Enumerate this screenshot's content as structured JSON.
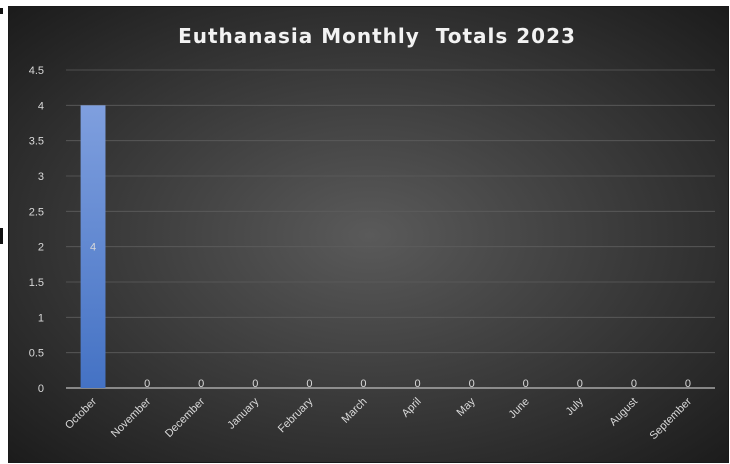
{
  "chart_data": {
    "type": "bar",
    "title": "Euthanasia Monthly  Totals 2023",
    "categories": [
      "October",
      "November",
      "December",
      "January",
      "February",
      "March",
      "April",
      "May",
      "June",
      "July",
      "August",
      "September"
    ],
    "values": [
      4,
      0,
      0,
      0,
      0,
      0,
      0,
      0,
      0,
      0,
      0,
      0
    ],
    "data_labels": [
      "4",
      "0",
      "0",
      "0",
      "0",
      "0",
      "0",
      "0",
      "0",
      "0",
      "0",
      "0"
    ],
    "ylim": [
      0,
      4.5
    ],
    "yticks": [
      0,
      0.5,
      1,
      1.5,
      2,
      2.5,
      3,
      3.5,
      4,
      4.5
    ],
    "ytick_labels": [
      "0",
      "0.5",
      "1",
      "1.5",
      "2",
      "2.5",
      "3",
      "3.5",
      "4",
      "4.5"
    ],
    "xlabel": "",
    "ylabel": "",
    "grid": true,
    "legend": "none",
    "colors": {
      "bar": "#4472c4",
      "bar_light": "#7f9fde",
      "background_center": "#5a5a5a",
      "background_edge": "#1c1c1c",
      "gridline": "#5d5d5d",
      "text": "#d9d9d9",
      "title": "#f2f2f2"
    }
  }
}
